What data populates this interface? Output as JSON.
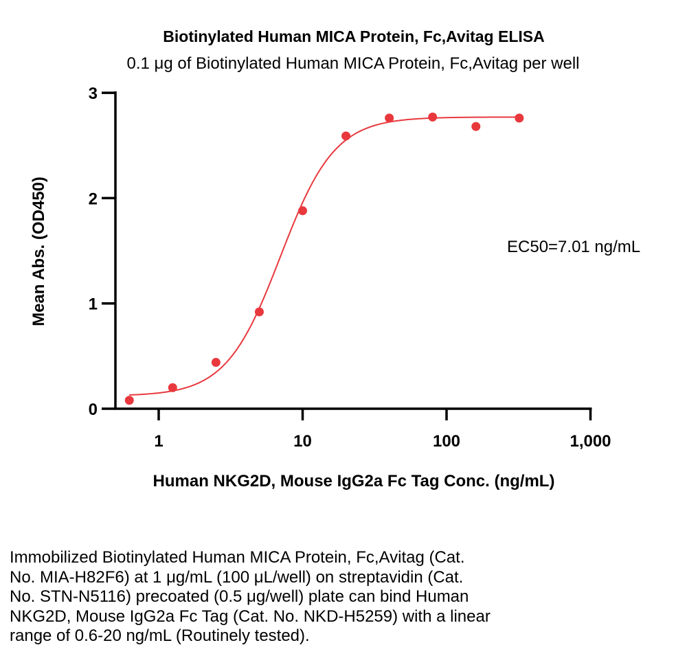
{
  "chart_data": {
    "type": "scatter",
    "title": "Biotinylated Human MICA Protein, Fc,Avitag ELISA",
    "subtitle": "0.1 μg of Biotinylated Human MICA Protein, Fc,Avitag per well",
    "xlabel": "Human NKG2D, Mouse IgG2a Fc Tag Conc. (ng/mL)",
    "ylabel": "Mean Abs. (OD450)",
    "x_scale": "log",
    "xlim": [
      0.5,
      1000
    ],
    "ylim": [
      0,
      3
    ],
    "x_ticks": [
      1,
      10,
      100,
      1000
    ],
    "x_tick_labels": [
      "1",
      "10",
      "100",
      "1,000"
    ],
    "y_ticks": [
      0,
      1,
      2,
      3
    ],
    "y_tick_labels": [
      "0",
      "1",
      "2",
      "3"
    ],
    "grid": false,
    "color": "#e8383d",
    "annotation": "EC50=7.01 ng/mL",
    "points": [
      {
        "x": 0.625,
        "y": 0.08
      },
      {
        "x": 1.25,
        "y": 0.2
      },
      {
        "x": 2.5,
        "y": 0.44
      },
      {
        "x": 5,
        "y": 0.92
      },
      {
        "x": 10,
        "y": 1.88
      },
      {
        "x": 20,
        "y": 2.59
      },
      {
        "x": 40,
        "y": 2.76
      },
      {
        "x": 80,
        "y": 2.77
      },
      {
        "x": 160,
        "y": 2.68
      },
      {
        "x": 320,
        "y": 2.76
      }
    ],
    "fit": {
      "bottom": 0.12,
      "top": 2.77,
      "ec50": 7.01,
      "hill": 2.3
    }
  },
  "caption": [
    "Immobilized Biotinylated Human MICA Protein, Fc,Avitag (Cat.",
    "No. MIA-H82F6) at 1 μg/mL (100 μL/well) on streptavidin (Cat.",
    "No. STN-N5116) precoated (0.5 μg/well) plate can bind Human",
    "NKG2D, Mouse IgG2a Fc Tag (Cat. No. NKD-H5259) with a linear",
    "range of 0.6-20 ng/mL (Routinely tested)."
  ]
}
